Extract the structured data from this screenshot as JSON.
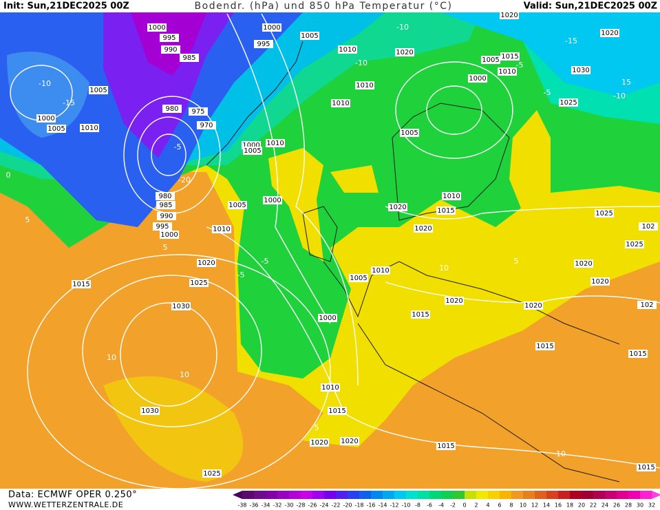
{
  "header": {
    "init": "Init: Sun,21DEC2025 00Z",
    "title": "Bodendr. (hPa) und 850 hPa Temperatur (°C)",
    "valid": "Valid: Sun,21DEC2025 00Z"
  },
  "footer": {
    "data": "Data: ECMWF OPER 0.250°",
    "site": "WWW.WETTERZENTRALE.DE"
  },
  "colorbar": {
    "ticks": [
      -38,
      -36,
      -34,
      -32,
      -30,
      -28,
      -26,
      -24,
      -22,
      -20,
      -18,
      -16,
      -14,
      -12,
      -10,
      -8,
      -6,
      -4,
      -2,
      0,
      2,
      4,
      6,
      8,
      10,
      12,
      14,
      16,
      18,
      20,
      22,
      24,
      26,
      28,
      30,
      32
    ],
    "colors": [
      "#5a0a6e",
      "#6e0a8c",
      "#8200a8",
      "#9a00c0",
      "#b400d8",
      "#c800e8",
      "#a000f0",
      "#7800f0",
      "#5020f0",
      "#2840f0",
      "#1060f0",
      "#0088f0",
      "#00a8f0",
      "#00c8f0",
      "#00e0d0",
      "#00e0a0",
      "#00d878",
      "#10d050",
      "#30c830",
      "#c8e000",
      "#f0e800",
      "#f8d000",
      "#f8b400",
      "#f09820",
      "#e88020",
      "#e06020",
      "#d84020",
      "#c82020",
      "#b00020",
      "#a00030",
      "#b00050",
      "#c80070",
      "#e00090",
      "#f000b0",
      "#ff20d0"
    ],
    "arrow_colors": [
      "#4a0060",
      "#ff40e0"
    ]
  },
  "isobar_labels": [
    "1000",
    "995",
    "990",
    "985",
    "1000",
    "1005",
    "995",
    "1010",
    "1020",
    "1020",
    "1020",
    "1005",
    "1015",
    "1010",
    "1000",
    "1030",
    "1005",
    "1010",
    "1010",
    "1025",
    "1000",
    "1005",
    "1010",
    "980",
    "975",
    "970",
    "1000",
    "1005",
    "1010",
    "1005",
    "980",
    "985",
    "990",
    "995",
    "1000",
    "1005",
    "1000",
    "1010",
    "1020",
    "1015",
    "1010",
    "1020",
    "1025",
    "102",
    "1025",
    "1020",
    "1025",
    "1015",
    "1030",
    "1005",
    "1010",
    "1020",
    "1020",
    "1020",
    "1020",
    "1015",
    "1000",
    "102",
    "1015",
    "1015",
    "1010",
    "1015",
    "1030",
    "1020",
    "1020",
    "1015",
    "1025",
    "1015"
  ],
  "isotherm_labels": [
    "-10",
    "-15",
    "-10",
    "-5",
    "-15",
    "-20",
    "-10",
    "-5",
    "-5",
    "0",
    "5",
    "-5",
    "5",
    "10",
    "10",
    "10",
    "5",
    "5",
    "10",
    "15",
    "-10",
    "-5"
  ]
}
